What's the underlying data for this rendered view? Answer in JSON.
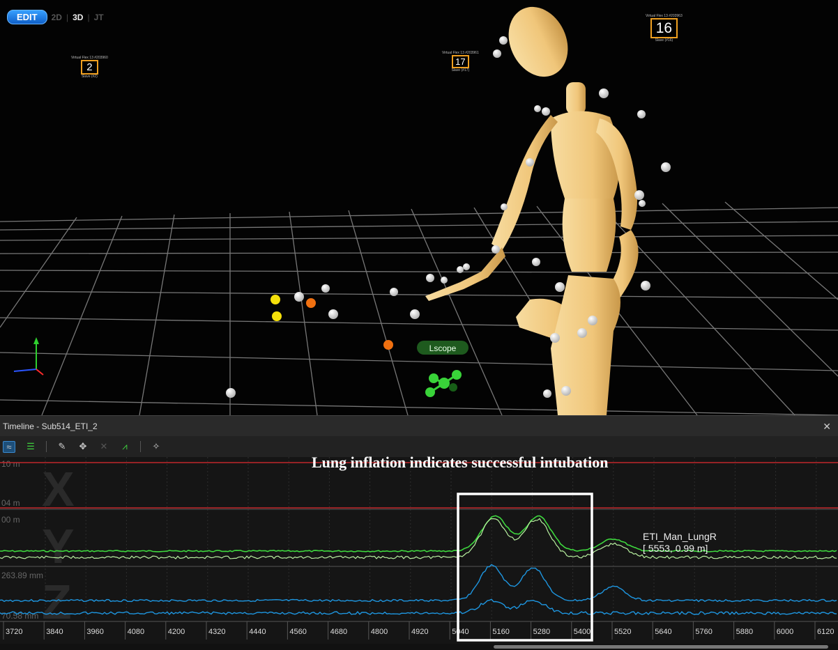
{
  "viewport": {
    "edit_label": "EDIT",
    "modes": [
      "2D",
      "3D",
      "JT"
    ],
    "active_mode": "3D",
    "cameras": [
      {
        "number": "2",
        "caption_top": "Virtual Flex 13 #203960",
        "caption_bottom": "Slave (#2)"
      },
      {
        "number": "17",
        "caption_top": "Virtual Flex 13 #203961",
        "caption_bottom": "Slave (#17)"
      },
      {
        "number": "16",
        "caption_top": "Virtual Flex 13 #203963",
        "caption_bottom": "Slave (#16)"
      }
    ],
    "rigid_body_label": "Lscope",
    "colors": {
      "marker": "#ffffff",
      "marker_orange": "#f07010",
      "marker_yellow": "#f5e00a",
      "rigid_body": "#39d339",
      "mannequin": "#f2cc80",
      "grid": "#8a8a8a"
    }
  },
  "timeline": {
    "title": "Timeline - Sub514_ETI_2",
    "close_icon": "close-icon",
    "tools": [
      "curve-icon",
      "list-icon",
      "pencil-icon",
      "move-icon",
      "delete-icon",
      "graph-icon",
      "wand-icon"
    ],
    "axes": [
      {
        "letter": "X",
        "top_label": "10 m",
        "bottom_label": "04 m"
      },
      {
        "letter": "Y",
        "top_label": "00 m",
        "bottom_label": ""
      },
      {
        "letter": "Z",
        "top_label": "263.89 mm",
        "bottom_label": "70.58 mm"
      }
    ],
    "annotation": "Lung inflation indicates successful intubation",
    "series_label": "ETI_Man_LungR",
    "series_value": "[ 5553, 0.99 m]",
    "colors": {
      "x_line": "#c0262b",
      "y_line": "#3ed83e",
      "y_line_light": "#b8f0a0",
      "z_line": "#1e96e0",
      "highlight_box": "#ffffff"
    }
  },
  "chart_data": {
    "type": "line",
    "x_ticks": [
      3720,
      3840,
      3960,
      4080,
      4200,
      4320,
      4440,
      4560,
      4680,
      4800,
      4920,
      5040,
      5160,
      5280,
      5400,
      5520,
      5640,
      5760,
      5880,
      6000,
      6120
    ],
    "highlight_range": [
      5085,
      5425
    ]
  }
}
